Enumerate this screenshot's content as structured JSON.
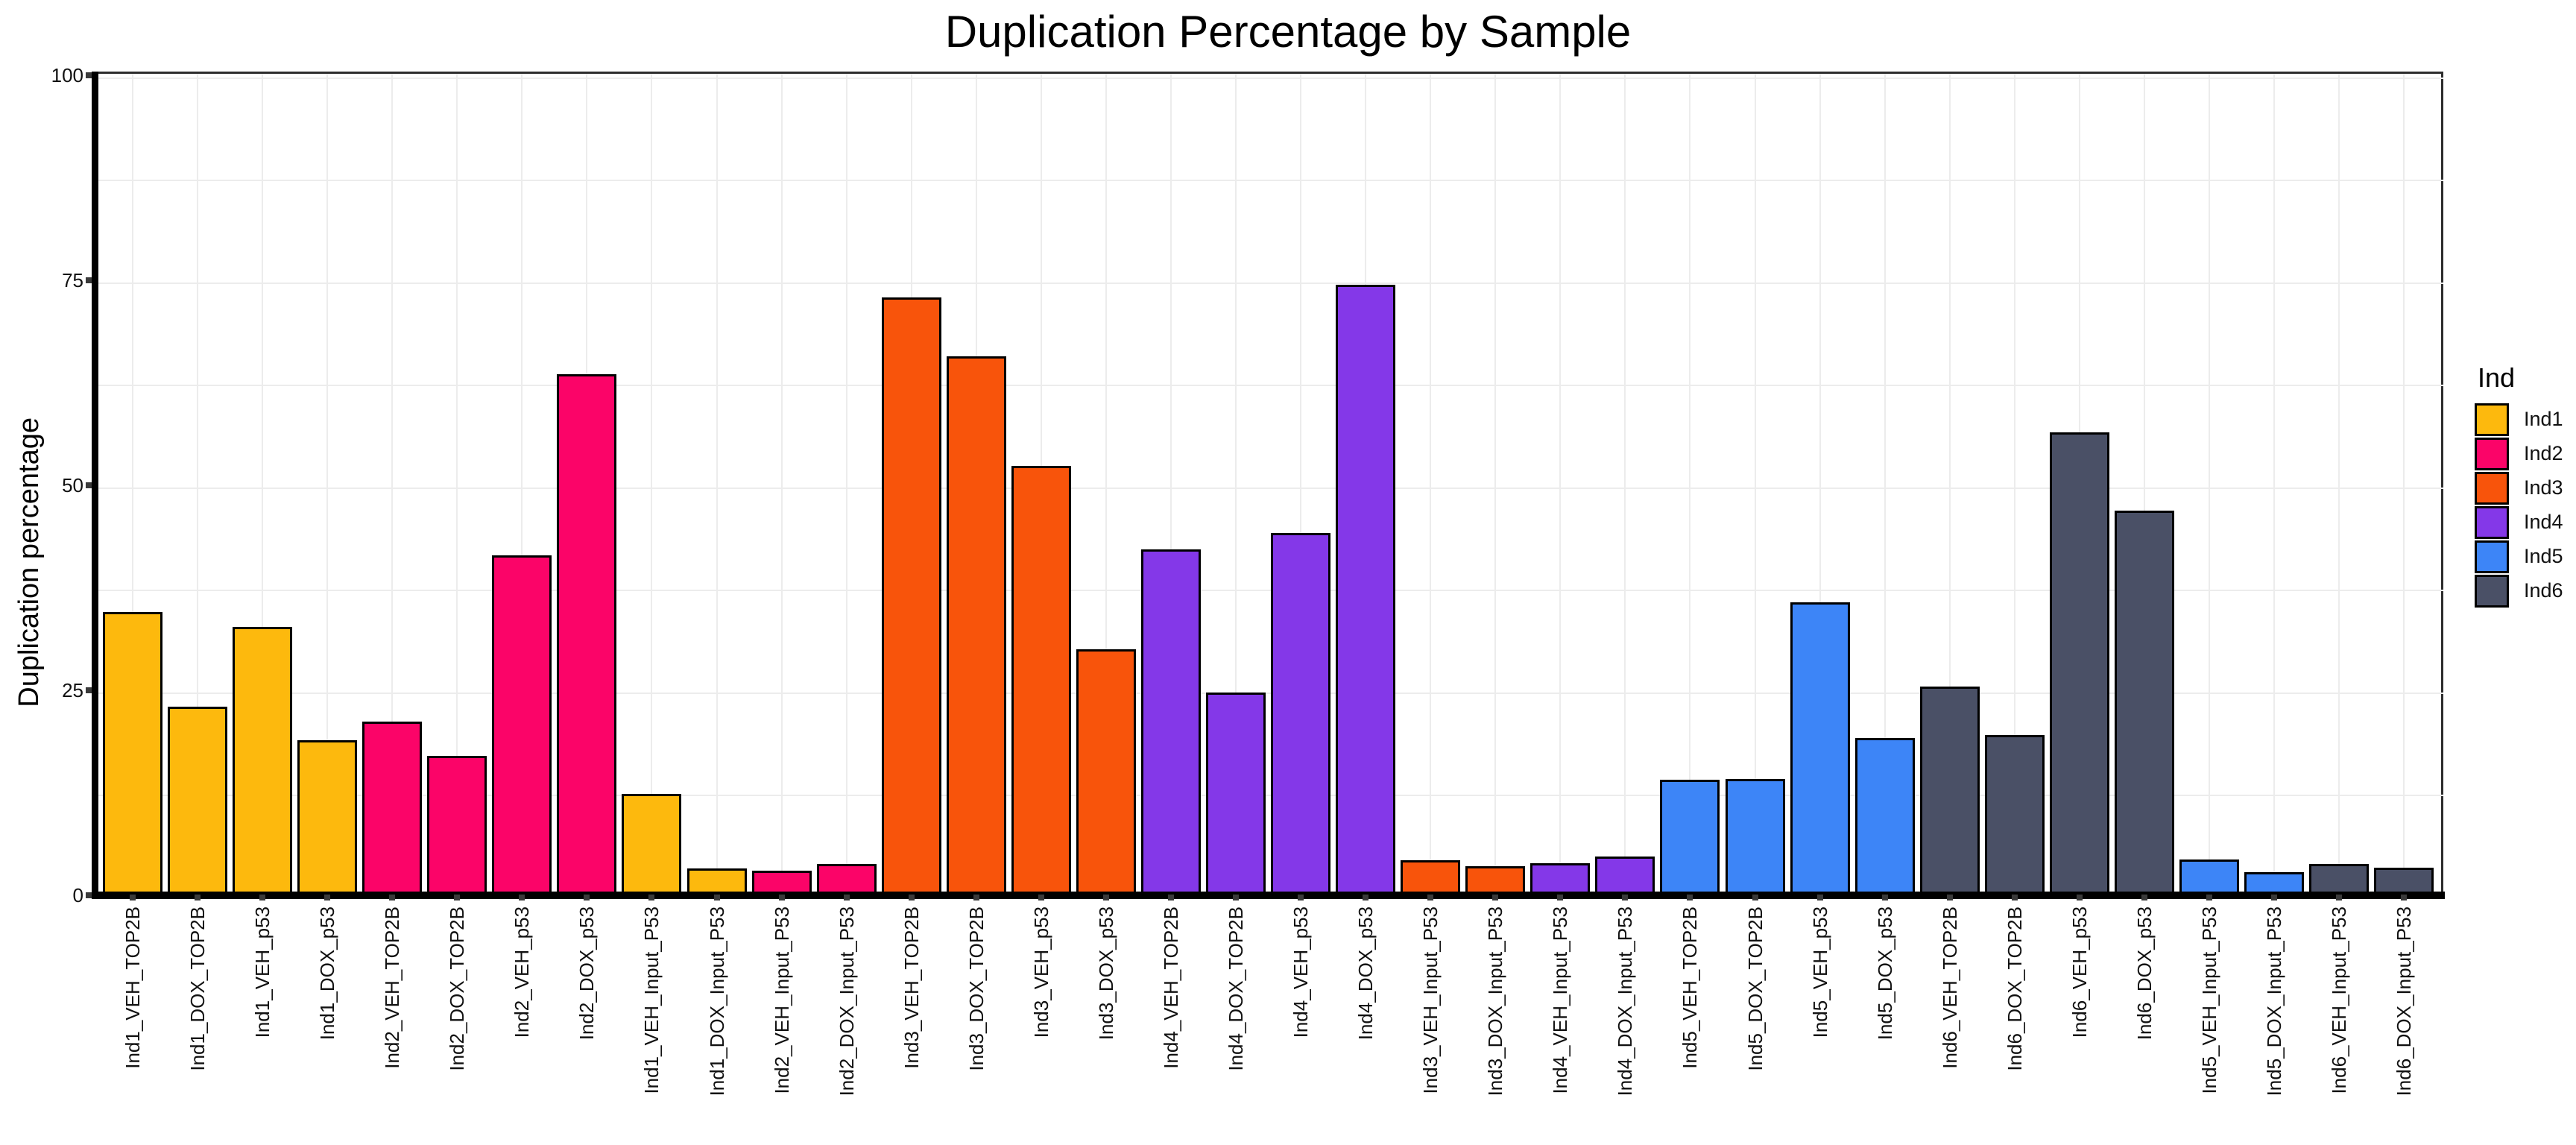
{
  "title": "Duplication Percentage by Sample",
  "chart_data": {
    "type": "bar",
    "title": "Duplication Percentage by Sample",
    "xlabel": "",
    "ylabel": "Duplication percentage",
    "ylim": [
      0,
      100
    ],
    "yticks": [
      0,
      25,
      50,
      75,
      100
    ],
    "grid": {
      "horizontal_step": 12.5,
      "vertical": "one line per category",
      "color": "#ececec"
    },
    "legend": {
      "title": "Ind",
      "position": "right",
      "entries": [
        {
          "label": "Ind1",
          "color": "#FDB90D"
        },
        {
          "label": "Ind2",
          "color": "#FB0468"
        },
        {
          "label": "Ind3",
          "color": "#F8540B"
        },
        {
          "label": "Ind4",
          "color": "#8438E8"
        },
        {
          "label": "Ind5",
          "color": "#3D85F7"
        },
        {
          "label": "Ind6",
          "color": "#4A5066"
        }
      ]
    },
    "categories": [
      "Ind1_VEH_TOP2B",
      "Ind1_DOX_TOP2B",
      "Ind1_VEH_p53",
      "Ind1_DOX_p53",
      "Ind2_VEH_TOP2B",
      "Ind2_DOX_TOP2B",
      "Ind2_VEH_p53",
      "Ind2_DOX_p53",
      "Ind1_VEH_Input_P53",
      "Ind1_DOX_Input_P53",
      "Ind2_VEH_Input_P53",
      "Ind2_DOX_Input_P53",
      "Ind3_VEH_TOP2B",
      "Ind3_DOX_TOP2B",
      "Ind3_VEH_p53",
      "Ind3_DOX_p53",
      "Ind4_VEH_TOP2B",
      "Ind4_DOX_TOP2B",
      "Ind4_VEH_p53",
      "Ind4_DOX_p53",
      "Ind3_VEH_Input_P53",
      "Ind3_DOX_Input_P53",
      "Ind4_VEH_Input_P53",
      "Ind4_DOX_Input_P53",
      "Ind5_VEH_TOP2B",
      "Ind5_DOX_TOP2B",
      "Ind5_VEH_p53",
      "Ind5_DOX_p53",
      "Ind6_VEH_TOP2B",
      "Ind6_DOX_TOP2B",
      "Ind6_VEH_p53",
      "Ind6_DOX_p53",
      "Ind5_VEH_Input_P53",
      "Ind5_DOX_Input_P53",
      "Ind6_VEH_Input_P53",
      "Ind6_DOX_Input_P53"
    ],
    "bar_groups": [
      "Ind1",
      "Ind1",
      "Ind1",
      "Ind1",
      "Ind2",
      "Ind2",
      "Ind2",
      "Ind2",
      "Ind1",
      "Ind1",
      "Ind2",
      "Ind2",
      "Ind3",
      "Ind3",
      "Ind3",
      "Ind3",
      "Ind4",
      "Ind4",
      "Ind4",
      "Ind4",
      "Ind3",
      "Ind3",
      "Ind4",
      "Ind4",
      "Ind5",
      "Ind5",
      "Ind5",
      "Ind5",
      "Ind6",
      "Ind6",
      "Ind6",
      "Ind6",
      "Ind5",
      "Ind5",
      "Ind6",
      "Ind6"
    ],
    "values": [
      34.4,
      22.8,
      32.5,
      18.7,
      21.0,
      16.8,
      41.3,
      63.4,
      12.2,
      3.1,
      2.8,
      3.6,
      72.7,
      65.5,
      52.2,
      29.8,
      42.0,
      24.5,
      44.0,
      74.3,
      4.1,
      3.4,
      3.7,
      4.5,
      13.9,
      14.0,
      35.5,
      19.0,
      25.3,
      19.4,
      56.3,
      46.7,
      4.2,
      2.6,
      3.6,
      3.2
    ]
  }
}
